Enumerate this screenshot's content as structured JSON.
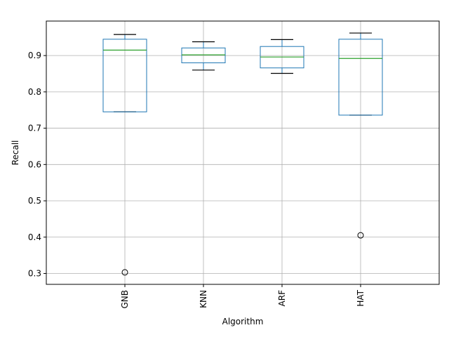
{
  "chart_data": {
    "type": "box",
    "title": "",
    "xlabel": "Algorithm",
    "ylabel": "Recall",
    "ylim": [
      0.27,
      0.995
    ],
    "yticks": [
      "0.3",
      "0.4",
      "0.5",
      "0.6",
      "0.7",
      "0.8",
      "0.9"
    ],
    "grid": true,
    "categories": [
      "GNB",
      "KNN",
      "ARF",
      "HAT"
    ],
    "boxes": [
      {
        "category": "GNB",
        "whisker_low": 0.745,
        "q1": 0.745,
        "median": 0.915,
        "q3": 0.945,
        "whisker_high": 0.958,
        "outliers": [
          0.303
        ]
      },
      {
        "category": "KNN",
        "whisker_low": 0.86,
        "q1": 0.88,
        "median": 0.902,
        "q3": 0.921,
        "whisker_high": 0.938,
        "outliers": []
      },
      {
        "category": "ARF",
        "whisker_low": 0.851,
        "q1": 0.866,
        "median": 0.896,
        "q3": 0.925,
        "whisker_high": 0.944,
        "outliers": []
      },
      {
        "category": "HAT",
        "whisker_low": 0.736,
        "q1": 0.736,
        "median": 0.892,
        "q3": 0.945,
        "whisker_high": 0.962,
        "outliers": [
          0.405
        ]
      }
    ],
    "colors": {
      "box": "#1f77b4",
      "median": "#2ca02c",
      "whisker": "#000000",
      "grid": "#b0b0b0"
    }
  }
}
